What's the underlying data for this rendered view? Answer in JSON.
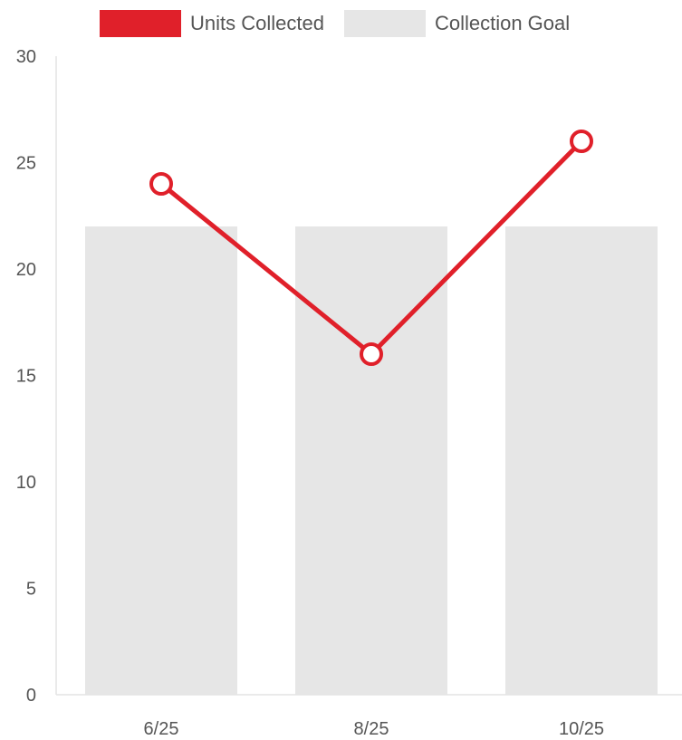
{
  "chart_data": {
    "type": "bar",
    "categories": [
      "6/25",
      "8/25",
      "10/25"
    ],
    "series": [
      {
        "name": "Units Collected",
        "kind": "line",
        "values": [
          24,
          16,
          26
        ],
        "color": "#e0202a"
      },
      {
        "name": "Collection Goal",
        "kind": "bar",
        "values": [
          22,
          22,
          22
        ],
        "color": "#e6e6e6"
      }
    ],
    "ylim": [
      0,
      30
    ],
    "yticks": [
      0,
      5,
      10,
      15,
      20,
      25,
      30
    ],
    "legend_position": "top",
    "grid": false,
    "title": "",
    "xlabel": "",
    "ylabel": ""
  }
}
